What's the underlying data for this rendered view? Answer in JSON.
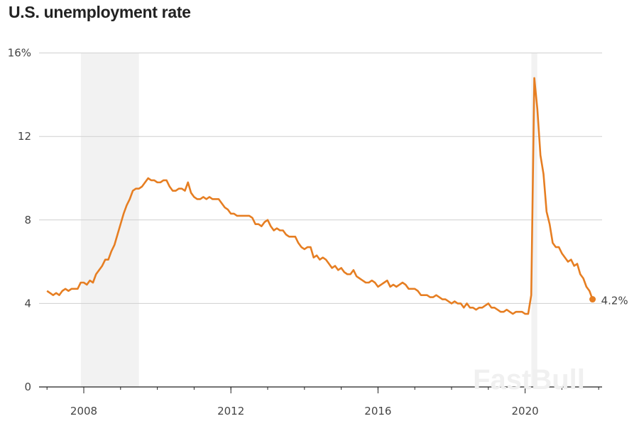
{
  "chart_data": {
    "type": "line",
    "title": "U.S. unemployment rate",
    "xlabel": "",
    "ylabel": "",
    "ylim": [
      0,
      16
    ],
    "xlim": [
      2007,
      2022.2
    ],
    "y_ticks": [
      "0",
      "4",
      "8",
      "12",
      "16%"
    ],
    "y_tick_values": [
      0,
      4,
      8,
      12,
      16
    ],
    "x_ticks": [
      "2008",
      "2012",
      "2016",
      "2020"
    ],
    "x_tick_values": [
      2008,
      2012,
      2016,
      2020
    ],
    "grid": true,
    "start": "2007-01",
    "frequency": "monthly",
    "series": [
      {
        "name": "Unemployment rate",
        "color": "#e67e22",
        "values": [
          4.6,
          4.5,
          4.4,
          4.5,
          4.4,
          4.6,
          4.7,
          4.6,
          4.7,
          4.7,
          4.7,
          5.0,
          5.0,
          4.9,
          5.1,
          5.0,
          5.4,
          5.6,
          5.8,
          6.1,
          6.1,
          6.5,
          6.8,
          7.3,
          7.8,
          8.3,
          8.7,
          9.0,
          9.4,
          9.5,
          9.5,
          9.6,
          9.8,
          10.0,
          9.9,
          9.9,
          9.8,
          9.8,
          9.9,
          9.9,
          9.6,
          9.4,
          9.4,
          9.5,
          9.5,
          9.4,
          9.8,
          9.3,
          9.1,
          9.0,
          9.0,
          9.1,
          9.0,
          9.1,
          9.0,
          9.0,
          9.0,
          8.8,
          8.6,
          8.5,
          8.3,
          8.3,
          8.2,
          8.2,
          8.2,
          8.2,
          8.2,
          8.1,
          7.8,
          7.8,
          7.7,
          7.9,
          8.0,
          7.7,
          7.5,
          7.6,
          7.5,
          7.5,
          7.3,
          7.2,
          7.2,
          7.2,
          6.9,
          6.7,
          6.6,
          6.7,
          6.7,
          6.2,
          6.3,
          6.1,
          6.2,
          6.1,
          5.9,
          5.7,
          5.8,
          5.6,
          5.7,
          5.5,
          5.4,
          5.4,
          5.6,
          5.3,
          5.2,
          5.1,
          5.0,
          5.0,
          5.1,
          5.0,
          4.8,
          4.9,
          5.0,
          5.1,
          4.8,
          4.9,
          4.8,
          4.9,
          5.0,
          4.9,
          4.7,
          4.7,
          4.7,
          4.6,
          4.4,
          4.4,
          4.4,
          4.3,
          4.3,
          4.4,
          4.3,
          4.2,
          4.2,
          4.1,
          4.0,
          4.1,
          4.0,
          4.0,
          3.8,
          4.0,
          3.8,
          3.8,
          3.7,
          3.8,
          3.8,
          3.9,
          4.0,
          3.8,
          3.8,
          3.7,
          3.6,
          3.6,
          3.7,
          3.6,
          3.5,
          3.6,
          3.6,
          3.6,
          3.5,
          3.5,
          4.4,
          14.8,
          13.3,
          11.1,
          10.2,
          8.4,
          7.8,
          6.9,
          6.7,
          6.7,
          6.4,
          6.2,
          6.0,
          6.1,
          5.8,
          5.9,
          5.4,
          5.2,
          4.8,
          4.6,
          4.2
        ]
      }
    ],
    "recessions": [
      [
        2007.92,
        2009.5
      ],
      [
        2020.17,
        2020.33
      ]
    ],
    "end_label": "4.2%",
    "watermark": "FastBull"
  }
}
